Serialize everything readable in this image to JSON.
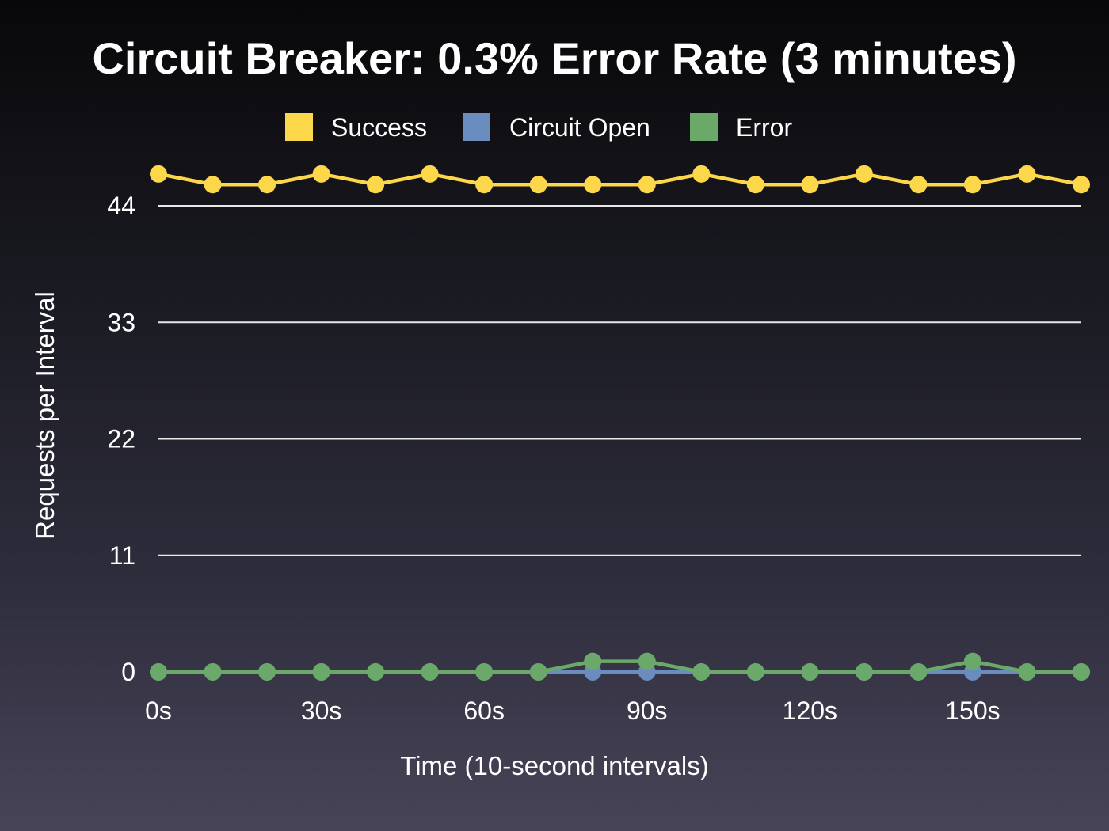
{
  "chart_data": {
    "type": "line",
    "title": "Circuit Breaker: 0.3% Error Rate (3 minutes)",
    "xlabel": "Time (10-second intervals)",
    "ylabel": "Requests per Interval",
    "x": [
      0,
      10,
      20,
      30,
      40,
      50,
      60,
      70,
      80,
      90,
      100,
      110,
      120,
      130,
      140,
      150,
      160,
      170
    ],
    "x_ticks": [
      0,
      30,
      60,
      90,
      120,
      150
    ],
    "x_tick_labels": [
      "0s",
      "30s",
      "60s",
      "90s",
      "120s",
      "150s"
    ],
    "xlim": [
      0,
      170
    ],
    "y_ticks": [
      0,
      11,
      22,
      33,
      44
    ],
    "y_tick_labels": [
      "0",
      "11",
      "22",
      "33",
      "44"
    ],
    "ylim": [
      0,
      44
    ],
    "grid": true,
    "legend_position": "top-center",
    "series": [
      {
        "name": "Success",
        "color": "#fdd74a",
        "values": [
          47,
          46,
          46,
          47,
          46,
          47,
          46,
          46,
          46,
          46,
          47,
          46,
          46,
          47,
          46,
          46,
          47,
          46
        ]
      },
      {
        "name": "Circuit Open",
        "color": "#6a8cbf",
        "values": [
          0,
          0,
          0,
          0,
          0,
          0,
          0,
          0,
          0,
          0,
          0,
          0,
          0,
          0,
          0,
          0,
          0,
          0
        ]
      },
      {
        "name": "Error",
        "color": "#6aa96a",
        "values": [
          0,
          0,
          0,
          0,
          0,
          0,
          0,
          0,
          1,
          1,
          0,
          0,
          0,
          0,
          0,
          1,
          0,
          0
        ]
      }
    ]
  }
}
